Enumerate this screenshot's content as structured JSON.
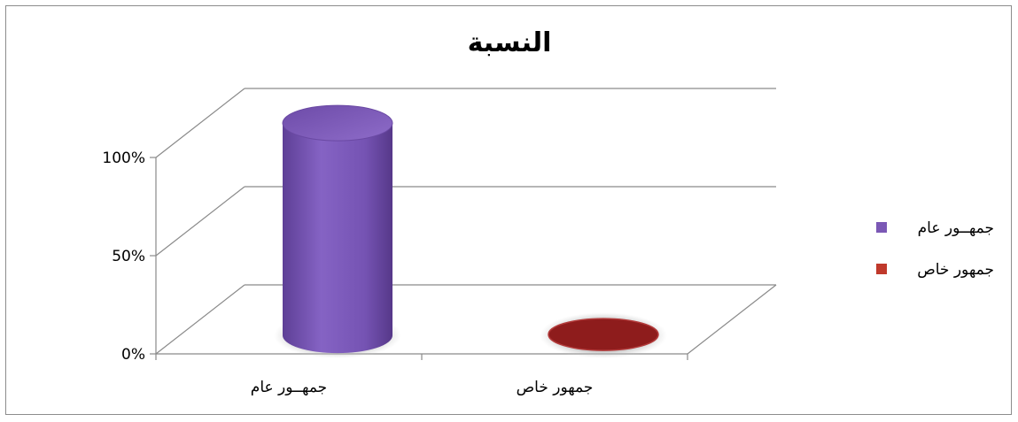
{
  "chart_data": {
    "type": "bar",
    "style": "3d-cylinder",
    "title": "النسبة",
    "categories": [
      "جمهــور عام",
      "جمهور خاص"
    ],
    "series": [
      {
        "values": [
          100,
          0
        ]
      }
    ],
    "bar_colors": [
      "#7b58b5",
      "#8e1c1c"
    ],
    "y_ticks": [
      "0%",
      "50%",
      "100%"
    ],
    "ylim": [
      0,
      100
    ],
    "grid": true,
    "legend": {
      "placement": "right",
      "entries": [
        {
          "label": "جمهــور عام",
          "color": "#7b58b5"
        },
        {
          "label": "جمهور خاص",
          "color": "#c0392b"
        }
      ]
    }
  }
}
